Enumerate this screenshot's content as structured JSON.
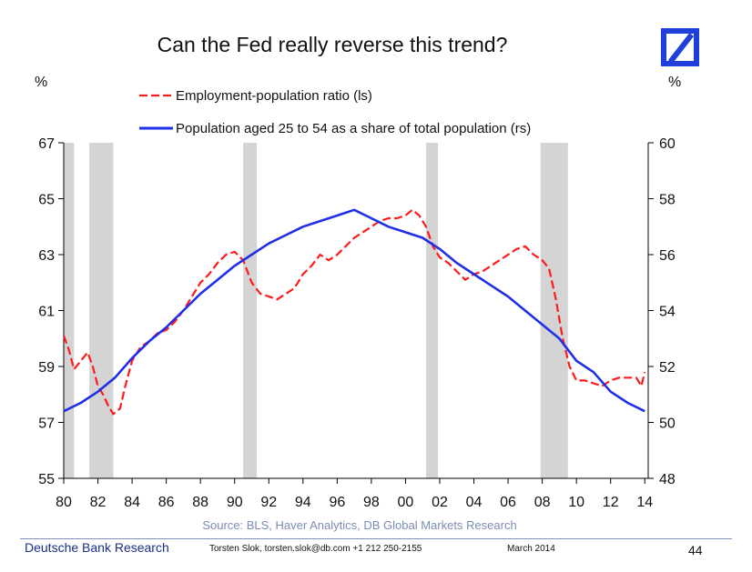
{
  "title": "Can the Fed really reverse this trend?",
  "units": {
    "left": "%",
    "right": "%"
  },
  "source": "Source: BLS, Haver Analytics, DB Global Markets Research",
  "footer": {
    "brand": "Deutsche Bank Research",
    "author": "Torsten Slok, torsten.slok@db.com  +1 212 250-2155",
    "date": "March 2014",
    "page": "44"
  },
  "colors": {
    "employment": "#ff1a1a",
    "population": "#1f2fe8",
    "recession": "#d4d4d4",
    "logo": "#1f3fdb"
  },
  "chart_data": {
    "type": "line",
    "title": "Can the Fed really reverse this trend?",
    "x_ticks": [
      "80",
      "82",
      "84",
      "86",
      "88",
      "90",
      "92",
      "94",
      "96",
      "98",
      "00",
      "02",
      "04",
      "06",
      "08",
      "10",
      "12",
      "14"
    ],
    "x_range": [
      1980,
      2014.2
    ],
    "left_axis": {
      "ticks": [
        "55",
        "57",
        "59",
        "61",
        "63",
        "65",
        "67"
      ],
      "range": [
        55,
        67
      ]
    },
    "right_axis": {
      "ticks": [
        "48",
        "50",
        "52",
        "54",
        "56",
        "58",
        "60"
      ],
      "range": [
        48,
        60
      ]
    },
    "grid": false,
    "legend_position": "top",
    "recessions": [
      [
        1980.0,
        1980.6
      ],
      [
        1981.5,
        1982.9
      ],
      [
        1990.5,
        1991.3
      ],
      [
        2001.2,
        2001.9
      ],
      [
        2007.9,
        2009.5
      ]
    ],
    "series": [
      {
        "name": "Employment-population ratio (ls)",
        "axis": "left",
        "style": "dashed",
        "points": [
          [
            1980.0,
            60.1
          ],
          [
            1980.3,
            59.6
          ],
          [
            1980.6,
            58.9
          ],
          [
            1981.0,
            59.2
          ],
          [
            1981.4,
            59.5
          ],
          [
            1981.7,
            59.0
          ],
          [
            1982.0,
            58.3
          ],
          [
            1982.3,
            58.0
          ],
          [
            1982.6,
            57.6
          ],
          [
            1982.9,
            57.3
          ],
          [
            1983.3,
            57.5
          ],
          [
            1983.6,
            58.3
          ],
          [
            1984.0,
            59.2
          ],
          [
            1984.5,
            59.7
          ],
          [
            1985.0,
            59.9
          ],
          [
            1985.5,
            60.2
          ],
          [
            1986.0,
            60.3
          ],
          [
            1986.5,
            60.6
          ],
          [
            1987.0,
            61.0
          ],
          [
            1987.5,
            61.5
          ],
          [
            1988.0,
            62.0
          ],
          [
            1988.5,
            62.3
          ],
          [
            1989.0,
            62.7
          ],
          [
            1989.5,
            63.0
          ],
          [
            1990.0,
            63.1
          ],
          [
            1990.5,
            62.8
          ],
          [
            1991.0,
            62.0
          ],
          [
            1991.5,
            61.6
          ],
          [
            1992.0,
            61.5
          ],
          [
            1992.5,
            61.4
          ],
          [
            1993.0,
            61.6
          ],
          [
            1993.5,
            61.8
          ],
          [
            1994.0,
            62.3
          ],
          [
            1994.5,
            62.6
          ],
          [
            1995.0,
            63.0
          ],
          [
            1995.5,
            62.8
          ],
          [
            1996.0,
            63.0
          ],
          [
            1996.5,
            63.3
          ],
          [
            1997.0,
            63.6
          ],
          [
            1997.5,
            63.8
          ],
          [
            1998.0,
            64.0
          ],
          [
            1998.5,
            64.2
          ],
          [
            1999.0,
            64.3
          ],
          [
            1999.5,
            64.3
          ],
          [
            2000.0,
            64.4
          ],
          [
            2000.4,
            64.6
          ],
          [
            2000.8,
            64.4
          ],
          [
            2001.2,
            64.0
          ],
          [
            2001.6,
            63.3
          ],
          [
            2002.0,
            62.9
          ],
          [
            2002.5,
            62.7
          ],
          [
            2003.0,
            62.4
          ],
          [
            2003.5,
            62.1
          ],
          [
            2004.0,
            62.3
          ],
          [
            2004.5,
            62.4
          ],
          [
            2005.0,
            62.6
          ],
          [
            2005.5,
            62.8
          ],
          [
            2006.0,
            63.0
          ],
          [
            2006.5,
            63.2
          ],
          [
            2007.0,
            63.3
          ],
          [
            2007.5,
            63.0
          ],
          [
            2008.0,
            62.8
          ],
          [
            2008.4,
            62.5
          ],
          [
            2008.8,
            61.4
          ],
          [
            2009.2,
            60.0
          ],
          [
            2009.6,
            59.0
          ],
          [
            2010.0,
            58.5
          ],
          [
            2010.5,
            58.5
          ],
          [
            2011.0,
            58.4
          ],
          [
            2011.5,
            58.3
          ],
          [
            2012.0,
            58.5
          ],
          [
            2012.5,
            58.6
          ],
          [
            2013.0,
            58.6
          ],
          [
            2013.5,
            58.6
          ],
          [
            2013.8,
            58.3
          ],
          [
            2014.0,
            58.8
          ]
        ]
      },
      {
        "name": "Population aged 25 to 54 as a share of total population (rs)",
        "axis": "right",
        "style": "solid",
        "points": [
          [
            1980.0,
            50.4
          ],
          [
            1981.0,
            50.7
          ],
          [
            1982.0,
            51.1
          ],
          [
            1983.0,
            51.6
          ],
          [
            1984.0,
            52.3
          ],
          [
            1985.0,
            52.9
          ],
          [
            1986.0,
            53.4
          ],
          [
            1987.0,
            54.0
          ],
          [
            1988.0,
            54.6
          ],
          [
            1989.0,
            55.1
          ],
          [
            1990.0,
            55.6
          ],
          [
            1991.0,
            56.0
          ],
          [
            1992.0,
            56.4
          ],
          [
            1993.0,
            56.7
          ],
          [
            1994.0,
            57.0
          ],
          [
            1995.0,
            57.2
          ],
          [
            1996.0,
            57.4
          ],
          [
            1997.0,
            57.6
          ],
          [
            1998.0,
            57.3
          ],
          [
            1999.0,
            57.0
          ],
          [
            2000.0,
            56.8
          ],
          [
            2001.0,
            56.6
          ],
          [
            2002.0,
            56.2
          ],
          [
            2003.0,
            55.7
          ],
          [
            2004.0,
            55.3
          ],
          [
            2005.0,
            54.9
          ],
          [
            2006.0,
            54.5
          ],
          [
            2007.0,
            54.0
          ],
          [
            2008.0,
            53.5
          ],
          [
            2009.0,
            53.0
          ],
          [
            2010.0,
            52.2
          ],
          [
            2011.0,
            51.8
          ],
          [
            2012.0,
            51.1
          ],
          [
            2013.0,
            50.7
          ],
          [
            2014.0,
            50.4
          ]
        ]
      }
    ]
  }
}
